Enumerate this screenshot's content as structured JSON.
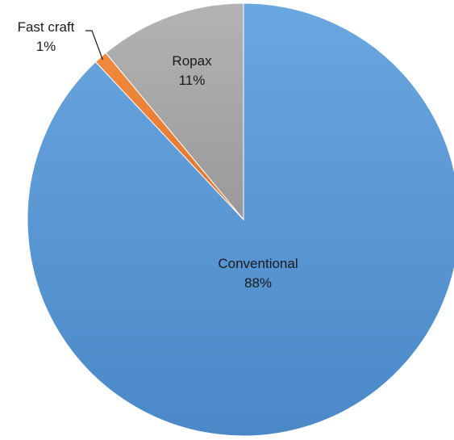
{
  "chart_data": {
    "type": "pie",
    "title": "",
    "categories": [
      "Conventional",
      "Fast craft",
      "Ropax"
    ],
    "values": [
      88,
      1,
      11
    ],
    "value_labels": [
      "88%",
      "1%",
      "11%"
    ],
    "colors": [
      "#5B9BD5",
      "#ED7D31",
      "#A5A5A5"
    ],
    "start_angle_deg": 0,
    "direction": "clockwise",
    "legend": "none"
  }
}
